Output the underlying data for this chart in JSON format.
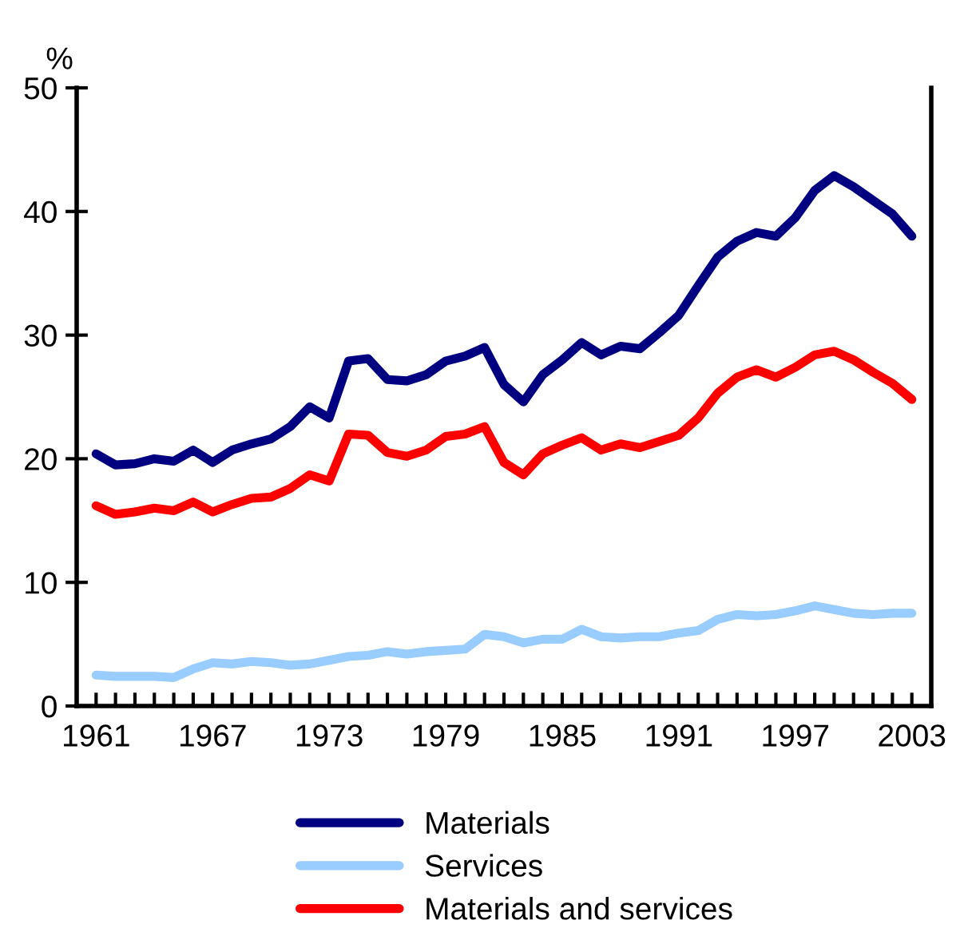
{
  "chart_data": {
    "type": "line",
    "ylabel": "%",
    "x": [
      1961,
      1962,
      1963,
      1964,
      1965,
      1966,
      1967,
      1968,
      1969,
      1970,
      1971,
      1972,
      1973,
      1974,
      1975,
      1976,
      1977,
      1978,
      1979,
      1980,
      1981,
      1982,
      1983,
      1984,
      1985,
      1986,
      1987,
      1988,
      1989,
      1990,
      1991,
      1992,
      1993,
      1994,
      1995,
      1996,
      1997,
      1998,
      1999,
      2000,
      2001,
      2002,
      2003
    ],
    "series": [
      {
        "name": "Materials",
        "color": "#000080",
        "values": [
          20.4,
          19.5,
          19.6,
          20.0,
          19.8,
          20.7,
          19.7,
          20.7,
          21.2,
          21.6,
          22.6,
          24.2,
          23.3,
          27.9,
          28.1,
          26.4,
          26.3,
          26.8,
          27.9,
          28.3,
          29.0,
          26.0,
          24.6,
          26.8,
          28.0,
          29.4,
          28.4,
          29.1,
          28.9,
          30.2,
          31.6,
          34.0,
          36.3,
          37.6,
          38.3,
          38.0,
          39.5,
          41.7,
          42.9,
          42.0,
          40.9,
          39.8,
          38.0
        ]
      },
      {
        "name": "Services",
        "color": "#99ccff",
        "values": [
          2.5,
          2.4,
          2.4,
          2.4,
          2.3,
          3.0,
          3.5,
          3.4,
          3.6,
          3.5,
          3.3,
          3.4,
          3.7,
          4.0,
          4.1,
          4.4,
          4.2,
          4.4,
          4.5,
          4.6,
          5.8,
          5.6,
          5.1,
          5.4,
          5.4,
          6.2,
          5.6,
          5.5,
          5.6,
          5.6,
          5.9,
          6.1,
          7.0,
          7.4,
          7.3,
          7.4,
          7.7,
          8.1,
          7.8,
          7.5,
          7.4,
          7.5,
          7.5
        ]
      },
      {
        "name": "Materials and services",
        "color": "#ff0000",
        "values": [
          16.2,
          15.5,
          15.7,
          16.0,
          15.8,
          16.5,
          15.7,
          16.3,
          16.8,
          16.9,
          17.6,
          18.7,
          18.2,
          22.0,
          21.9,
          20.5,
          20.2,
          20.7,
          21.8,
          22.0,
          22.6,
          19.7,
          18.7,
          20.4,
          21.1,
          21.7,
          20.7,
          21.2,
          20.9,
          21.4,
          21.9,
          23.3,
          25.3,
          26.6,
          27.2,
          26.6,
          27.4,
          28.4,
          28.7,
          28.0,
          27.0,
          26.1,
          24.8
        ]
      }
    ],
    "xlim": [
      1960,
      2004
    ],
    "xticks": [
      1961,
      {
        "value": 1962,
        "label": null
      },
      {
        "value": 1963,
        "label": null
      },
      {
        "value": 1964,
        "label": null
      },
      {
        "value": 1965,
        "label": null
      },
      {
        "value": 1966,
        "label": null
      },
      1967,
      {
        "value": 1968,
        "label": null
      },
      {
        "value": 1969,
        "label": null
      },
      {
        "value": 1970,
        "label": null
      },
      {
        "value": 1971,
        "label": null
      },
      {
        "value": 1972,
        "label": null
      },
      1973,
      {
        "value": 1974,
        "label": null
      },
      {
        "value": 1975,
        "label": null
      },
      {
        "value": 1976,
        "label": null
      },
      {
        "value": 1977,
        "label": null
      },
      {
        "value": 1978,
        "label": null
      },
      1979,
      {
        "value": 1980,
        "label": null
      },
      {
        "value": 1981,
        "label": null
      },
      {
        "value": 1982,
        "label": null
      },
      {
        "value": 1983,
        "label": null
      },
      {
        "value": 1984,
        "label": null
      },
      1985,
      {
        "value": 1986,
        "label": null
      },
      {
        "value": 1987,
        "label": null
      },
      {
        "value": 1988,
        "label": null
      },
      {
        "value": 1989,
        "label": null
      },
      {
        "value": 1990,
        "label": null
      },
      1991,
      {
        "value": 1992,
        "label": null
      },
      {
        "value": 1993,
        "label": null
      },
      {
        "value": 1994,
        "label": null
      },
      {
        "value": 1995,
        "label": null
      },
      {
        "value": 1996,
        "label": null
      },
      1997,
      {
        "value": 1998,
        "label": null
      },
      {
        "value": 1999,
        "label": null
      },
      {
        "value": 2000,
        "label": null
      },
      {
        "value": 2001,
        "label": null
      },
      {
        "value": 2002,
        "label": null
      },
      2003
    ],
    "ylim": [
      0,
      50
    ],
    "yticks": [
      0,
      10,
      20,
      30,
      40,
      50
    ],
    "grid": false,
    "legend": "bottom",
    "marker": "none",
    "line_style": "solid"
  }
}
